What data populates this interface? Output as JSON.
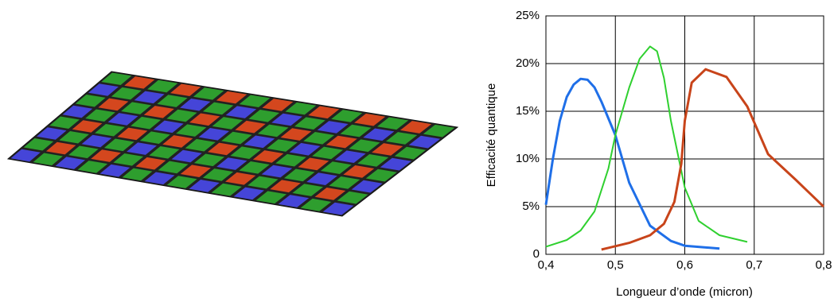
{
  "chart_data": {
    "type": "line",
    "x_label": "Longueur d’onde (micron)",
    "y_label": "Efficacité quantique",
    "xlim": [
      0.4,
      0.8
    ],
    "ylim": [
      0,
      25
    ],
    "xticks": [
      {
        "value": 0.4,
        "label": "0,4"
      },
      {
        "value": 0.5,
        "label": "0,5"
      },
      {
        "value": 0.6,
        "label": "0,6"
      },
      {
        "value": 0.7,
        "label": "0,7"
      },
      {
        "value": 0.8,
        "label": "0,8"
      }
    ],
    "yticks": [
      0,
      {
        "value": 5,
        "label": "5%"
      },
      {
        "value": 10,
        "label": "10%"
      },
      {
        "value": 15,
        "label": "15%"
      },
      {
        "value": 20,
        "label": "20%"
      },
      {
        "value": 25,
        "label": "25%"
      }
    ],
    "grid": true,
    "series": [
      {
        "color": "#1f6fe8",
        "x": [
          0.4,
          0.41,
          0.42,
          0.43,
          0.44,
          0.45,
          0.46,
          0.47,
          0.48,
          0.5,
          0.52,
          0.55,
          0.58,
          0.6,
          0.65
        ],
        "values": [
          5.2,
          10,
          14,
          16.5,
          17.8,
          18.4,
          18.3,
          17.5,
          16,
          12.5,
          7.5,
          3,
          1.4,
          0.9,
          0.6
        ]
      },
      {
        "color": "#2fd02f",
        "x": [
          0.4,
          0.43,
          0.45,
          0.47,
          0.49,
          0.5,
          0.52,
          0.535,
          0.55,
          0.56,
          0.57,
          0.58,
          0.6,
          0.62,
          0.65,
          0.69
        ],
        "values": [
          0.8,
          1.5,
          2.5,
          4.5,
          9,
          12.5,
          17.5,
          20.5,
          21.8,
          21.3,
          18.5,
          14,
          7,
          3.5,
          2,
          1.3
        ]
      },
      {
        "color": "#c8441a",
        "x": [
          0.48,
          0.52,
          0.55,
          0.57,
          0.585,
          0.595,
          0.6,
          0.61,
          0.63,
          0.66,
          0.69,
          0.72,
          0.76,
          0.8
        ],
        "values": [
          0.5,
          1.2,
          2,
          3.2,
          5.5,
          9.5,
          14,
          18,
          19.4,
          18.6,
          15.5,
          10.5,
          7.8,
          5
        ]
      }
    ]
  }
}
